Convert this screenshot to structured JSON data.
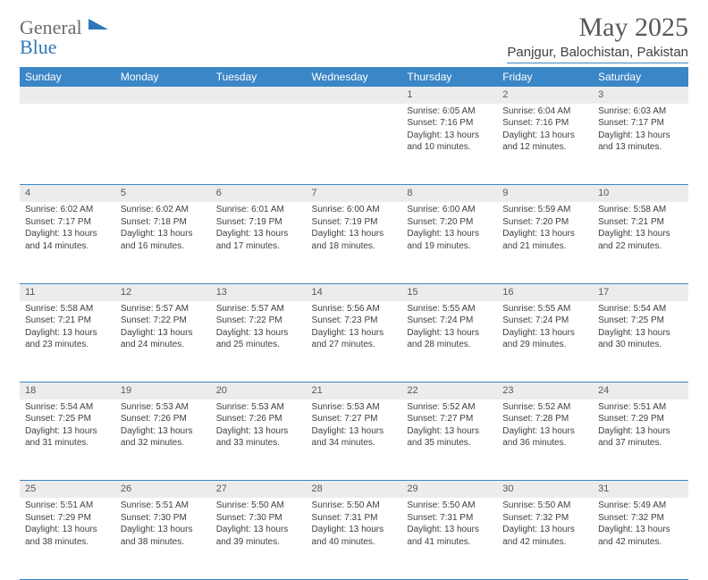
{
  "brand": {
    "first": "General",
    "second": "Blue"
  },
  "title": {
    "month": "May 2025",
    "location": "Panjgur, Balochistan, Pakistan"
  },
  "colors": {
    "header_bg": "#3b86c6",
    "rule": "#3b86c6",
    "daynum_bg": "#ececec"
  },
  "dayNames": [
    "Sunday",
    "Monday",
    "Tuesday",
    "Wednesday",
    "Thursday",
    "Friday",
    "Saturday"
  ],
  "days": [
    {
      "n": 1,
      "sr": "6:05 AM",
      "ss": "7:16 PM",
      "dl": "13 hours and 10 minutes."
    },
    {
      "n": 2,
      "sr": "6:04 AM",
      "ss": "7:16 PM",
      "dl": "13 hours and 12 minutes."
    },
    {
      "n": 3,
      "sr": "6:03 AM",
      "ss": "7:17 PM",
      "dl": "13 hours and 13 minutes."
    },
    {
      "n": 4,
      "sr": "6:02 AM",
      "ss": "7:17 PM",
      "dl": "13 hours and 14 minutes."
    },
    {
      "n": 5,
      "sr": "6:02 AM",
      "ss": "7:18 PM",
      "dl": "13 hours and 16 minutes."
    },
    {
      "n": 6,
      "sr": "6:01 AM",
      "ss": "7:19 PM",
      "dl": "13 hours and 17 minutes."
    },
    {
      "n": 7,
      "sr": "6:00 AM",
      "ss": "7:19 PM",
      "dl": "13 hours and 18 minutes."
    },
    {
      "n": 8,
      "sr": "6:00 AM",
      "ss": "7:20 PM",
      "dl": "13 hours and 19 minutes."
    },
    {
      "n": 9,
      "sr": "5:59 AM",
      "ss": "7:20 PM",
      "dl": "13 hours and 21 minutes."
    },
    {
      "n": 10,
      "sr": "5:58 AM",
      "ss": "7:21 PM",
      "dl": "13 hours and 22 minutes."
    },
    {
      "n": 11,
      "sr": "5:58 AM",
      "ss": "7:21 PM",
      "dl": "13 hours and 23 minutes."
    },
    {
      "n": 12,
      "sr": "5:57 AM",
      "ss": "7:22 PM",
      "dl": "13 hours and 24 minutes."
    },
    {
      "n": 13,
      "sr": "5:57 AM",
      "ss": "7:22 PM",
      "dl": "13 hours and 25 minutes."
    },
    {
      "n": 14,
      "sr": "5:56 AM",
      "ss": "7:23 PM",
      "dl": "13 hours and 27 minutes."
    },
    {
      "n": 15,
      "sr": "5:55 AM",
      "ss": "7:24 PM",
      "dl": "13 hours and 28 minutes."
    },
    {
      "n": 16,
      "sr": "5:55 AM",
      "ss": "7:24 PM",
      "dl": "13 hours and 29 minutes."
    },
    {
      "n": 17,
      "sr": "5:54 AM",
      "ss": "7:25 PM",
      "dl": "13 hours and 30 minutes."
    },
    {
      "n": 18,
      "sr": "5:54 AM",
      "ss": "7:25 PM",
      "dl": "13 hours and 31 minutes."
    },
    {
      "n": 19,
      "sr": "5:53 AM",
      "ss": "7:26 PM",
      "dl": "13 hours and 32 minutes."
    },
    {
      "n": 20,
      "sr": "5:53 AM",
      "ss": "7:26 PM",
      "dl": "13 hours and 33 minutes."
    },
    {
      "n": 21,
      "sr": "5:53 AM",
      "ss": "7:27 PM",
      "dl": "13 hours and 34 minutes."
    },
    {
      "n": 22,
      "sr": "5:52 AM",
      "ss": "7:27 PM",
      "dl": "13 hours and 35 minutes."
    },
    {
      "n": 23,
      "sr": "5:52 AM",
      "ss": "7:28 PM",
      "dl": "13 hours and 36 minutes."
    },
    {
      "n": 24,
      "sr": "5:51 AM",
      "ss": "7:29 PM",
      "dl": "13 hours and 37 minutes."
    },
    {
      "n": 25,
      "sr": "5:51 AM",
      "ss": "7:29 PM",
      "dl": "13 hours and 38 minutes."
    },
    {
      "n": 26,
      "sr": "5:51 AM",
      "ss": "7:30 PM",
      "dl": "13 hours and 38 minutes."
    },
    {
      "n": 27,
      "sr": "5:50 AM",
      "ss": "7:30 PM",
      "dl": "13 hours and 39 minutes."
    },
    {
      "n": 28,
      "sr": "5:50 AM",
      "ss": "7:31 PM",
      "dl": "13 hours and 40 minutes."
    },
    {
      "n": 29,
      "sr": "5:50 AM",
      "ss": "7:31 PM",
      "dl": "13 hours and 41 minutes."
    },
    {
      "n": 30,
      "sr": "5:50 AM",
      "ss": "7:32 PM",
      "dl": "13 hours and 42 minutes."
    },
    {
      "n": 31,
      "sr": "5:49 AM",
      "ss": "7:32 PM",
      "dl": "13 hours and 42 minutes."
    }
  ],
  "layout": {
    "firstDayOffset": 4,
    "weeks": 5
  },
  "labels": {
    "sunrise": "Sunrise:",
    "sunset": "Sunset:",
    "daylight": "Daylight:"
  }
}
